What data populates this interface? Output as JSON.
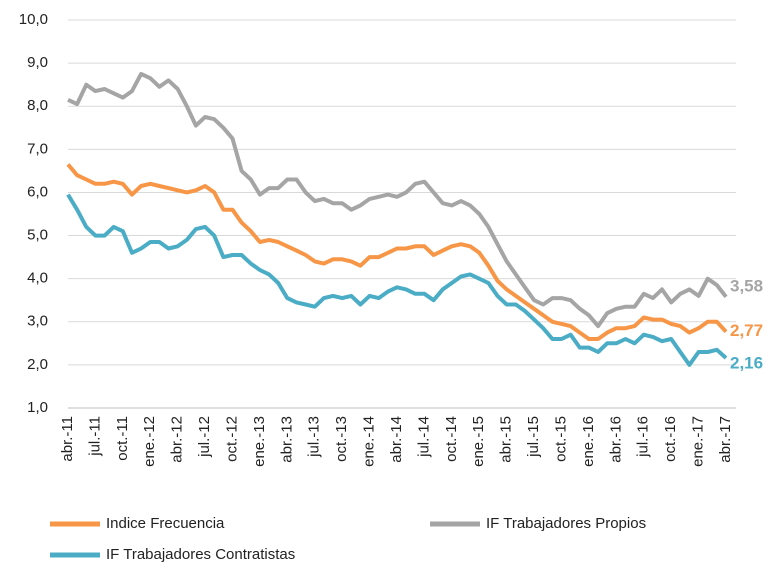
{
  "chart_data": {
    "type": "line",
    "categories": [
      "abr.-11",
      null,
      null,
      "jul.-11",
      null,
      null,
      "oct.-11",
      null,
      null,
      "ene.-12",
      null,
      null,
      "abr.-12",
      null,
      null,
      "jul.-12",
      null,
      null,
      "oct.-12",
      null,
      null,
      "ene.-13",
      null,
      null,
      "abr.-13",
      null,
      null,
      "jul.-13",
      null,
      null,
      "oct.-13",
      null,
      null,
      "ene.-14",
      null,
      null,
      "abr.-14",
      null,
      null,
      "jul.-14",
      null,
      null,
      "oct.-14",
      null,
      null,
      "ene.-15",
      null,
      null,
      "abr.-15",
      null,
      null,
      "jul.-15",
      null,
      null,
      "oct.-15",
      null,
      null,
      "ene.-16",
      null,
      null,
      "abr.-16",
      null,
      null,
      "jul.-16",
      null,
      null,
      "oct.-16",
      null,
      null,
      "ene.-17",
      null,
      null,
      "abr.-17"
    ],
    "series": [
      {
        "name": "Indice Frecuencia",
        "color": "#f79646",
        "values": [
          6.65,
          6.4,
          6.3,
          6.2,
          6.2,
          6.25,
          6.2,
          5.95,
          6.15,
          6.2,
          6.15,
          6.1,
          6.05,
          6.0,
          6.05,
          6.15,
          6.0,
          5.6,
          5.6,
          5.3,
          5.1,
          4.85,
          4.9,
          4.85,
          4.75,
          4.65,
          4.55,
          4.4,
          4.35,
          4.45,
          4.45,
          4.4,
          4.3,
          4.5,
          4.5,
          4.6,
          4.7,
          4.7,
          4.75,
          4.75,
          4.55,
          4.65,
          4.75,
          4.8,
          4.75,
          4.6,
          4.3,
          3.95,
          3.75,
          3.6,
          3.45,
          3.3,
          3.15,
          3.0,
          2.95,
          2.9,
          2.75,
          2.6,
          2.6,
          2.75,
          2.85,
          2.85,
          2.9,
          3.1,
          3.05,
          3.05,
          2.95,
          2.9,
          2.75,
          2.85,
          3.0,
          3.0,
          2.77
        ],
        "value_labels": [
          null,
          null,
          null,
          null,
          null,
          null,
          null,
          null,
          null,
          null,
          null,
          null,
          null,
          null,
          null,
          null,
          null,
          null,
          null,
          null,
          null,
          null,
          null,
          null,
          null,
          null,
          null,
          null,
          null,
          null,
          null,
          null,
          null,
          null,
          null,
          null,
          null,
          null,
          null,
          null,
          null,
          null,
          null,
          null,
          null,
          null,
          null,
          null,
          null,
          null,
          null,
          null,
          null,
          null,
          null,
          null,
          null,
          null,
          null,
          null,
          null,
          null,
          null,
          null,
          null,
          null,
          null,
          null,
          null,
          null,
          null,
          null,
          "2,77"
        ]
      },
      {
        "name": "IF Trabajadores Propios",
        "color": "#a5a5a5",
        "values": [
          8.15,
          8.05,
          8.5,
          8.35,
          8.4,
          8.3,
          8.2,
          8.35,
          8.75,
          8.65,
          8.45,
          8.6,
          8.4,
          8.0,
          7.55,
          7.75,
          7.7,
          7.5,
          7.25,
          6.5,
          6.3,
          5.95,
          6.1,
          6.1,
          6.3,
          6.3,
          6.0,
          5.8,
          5.85,
          5.75,
          5.75,
          5.6,
          5.7,
          5.85,
          5.9,
          5.95,
          5.9,
          6.0,
          6.2,
          6.25,
          6.0,
          5.75,
          5.7,
          5.8,
          5.7,
          5.5,
          5.2,
          4.8,
          4.4,
          4.1,
          3.8,
          3.5,
          3.4,
          3.55,
          3.55,
          3.5,
          3.3,
          3.15,
          2.9,
          3.2,
          3.3,
          3.35,
          3.35,
          3.65,
          3.55,
          3.75,
          3.45,
          3.65,
          3.75,
          3.6,
          4.0,
          3.85,
          3.58
        ],
        "value_labels": [
          null,
          null,
          null,
          null,
          null,
          null,
          null,
          null,
          null,
          null,
          null,
          null,
          null,
          null,
          null,
          null,
          null,
          null,
          null,
          null,
          null,
          null,
          null,
          null,
          null,
          null,
          null,
          null,
          null,
          null,
          null,
          null,
          null,
          null,
          null,
          null,
          null,
          null,
          null,
          null,
          null,
          null,
          null,
          null,
          null,
          null,
          null,
          null,
          null,
          null,
          null,
          null,
          null,
          null,
          null,
          null,
          null,
          null,
          null,
          null,
          null,
          null,
          null,
          null,
          null,
          null,
          null,
          null,
          null,
          null,
          null,
          null,
          "3,58"
        ]
      },
      {
        "name": "IF Trabajadores Contratistas",
        "color": "#4bacc6",
        "values": [
          5.95,
          5.6,
          5.2,
          5.0,
          5.0,
          5.2,
          5.1,
          4.6,
          4.7,
          4.85,
          4.85,
          4.7,
          4.75,
          4.9,
          5.15,
          5.2,
          5.0,
          4.5,
          4.55,
          4.55,
          4.35,
          4.2,
          4.1,
          3.9,
          3.55,
          3.45,
          3.4,
          3.35,
          3.55,
          3.6,
          3.55,
          3.6,
          3.4,
          3.6,
          3.55,
          3.7,
          3.8,
          3.75,
          3.65,
          3.65,
          3.5,
          3.75,
          3.9,
          4.05,
          4.1,
          4.0,
          3.9,
          3.6,
          3.4,
          3.4,
          3.25,
          3.05,
          2.85,
          2.6,
          2.6,
          2.7,
          2.4,
          2.4,
          2.3,
          2.5,
          2.5,
          2.6,
          2.5,
          2.7,
          2.65,
          2.55,
          2.6,
          2.3,
          2.0,
          2.3,
          2.3,
          2.35,
          2.16
        ],
        "value_labels": [
          null,
          null,
          null,
          null,
          null,
          null,
          null,
          null,
          null,
          null,
          null,
          null,
          null,
          null,
          null,
          null,
          null,
          null,
          null,
          null,
          null,
          null,
          null,
          null,
          null,
          null,
          null,
          null,
          null,
          null,
          null,
          null,
          null,
          null,
          null,
          null,
          null,
          null,
          null,
          null,
          null,
          null,
          null,
          null,
          null,
          null,
          null,
          null,
          null,
          null,
          null,
          null,
          null,
          null,
          null,
          null,
          null,
          null,
          null,
          null,
          null,
          null,
          null,
          null,
          null,
          null,
          null,
          null,
          null,
          null,
          null,
          null,
          "2,16"
        ]
      }
    ],
    "ylim": [
      1,
      10
    ],
    "yticks": [
      {
        "value": 1,
        "label": "1,0"
      },
      {
        "value": 2,
        "label": "2,0"
      },
      {
        "value": 3,
        "label": "3,0"
      },
      {
        "value": 4,
        "label": "4,0"
      },
      {
        "value": 5,
        "label": "5,0"
      },
      {
        "value": 6,
        "label": "6,0"
      },
      {
        "value": 7,
        "label": "7,0"
      },
      {
        "value": 8,
        "label": "8,0"
      },
      {
        "value": 9,
        "label": "9,0"
      },
      {
        "value": 10,
        "label": "10,0"
      }
    ],
    "grid": true,
    "legend": "bottom"
  }
}
